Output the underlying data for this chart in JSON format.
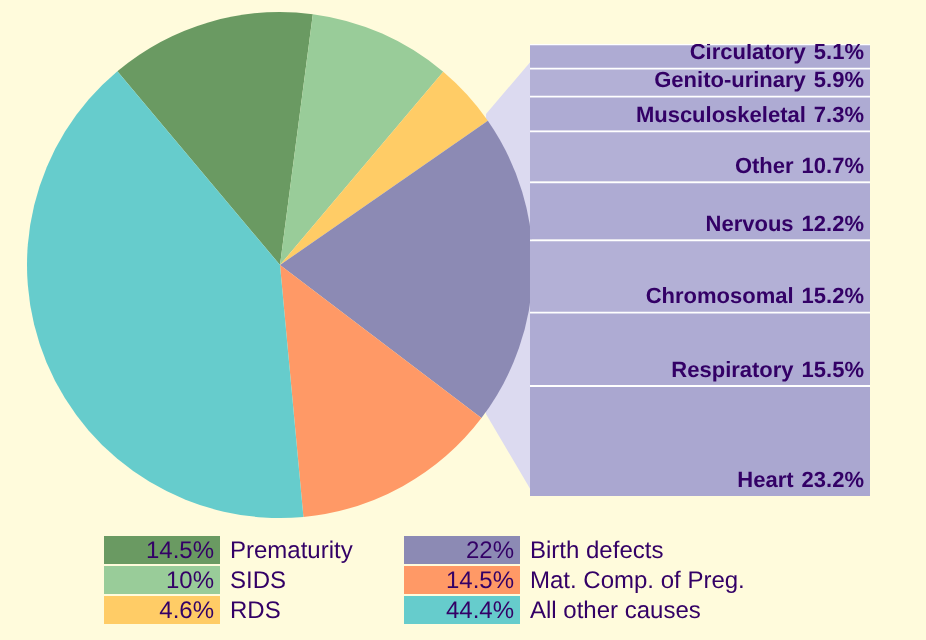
{
  "chart_data": [
    {
      "type": "pie",
      "categories": [
        "Prematurity",
        "SIDS",
        "RDS",
        "Birth defects",
        "Mat. Comp. of Preg.",
        "All other causes"
      ],
      "values": [
        14.5,
        10,
        4.6,
        22,
        14.5,
        44.4
      ],
      "value_labels": [
        "14.5%",
        "10%",
        "4.6%",
        "22%",
        "14.5%",
        "44.4%"
      ],
      "colors": [
        "#6a9a62",
        "#99cc99",
        "#ffcc66",
        "#8c8ab4",
        "#ff9966",
        "#66cccc"
      ],
      "legend": "bottom"
    },
    {
      "type": "bar",
      "stacked": true,
      "categories": [
        null
      ],
      "tick_labels": false,
      "series": [
        {
          "name": "Heart",
          "color": "#aaa7d0",
          "values": [
            23.2
          ],
          "value_labels": [
            "23.2%"
          ]
        },
        {
          "name": "Respiratory",
          "color": "#aeabd3",
          "values": [
            15.5
          ],
          "value_labels": [
            "15.5%"
          ]
        },
        {
          "name": "Chromosomal",
          "color": "#b3b0d6",
          "values": [
            15.2
          ],
          "value_labels": [
            "15.2%"
          ]
        },
        {
          "name": "Nervous",
          "color": "#aeabd3",
          "values": [
            12.2
          ],
          "value_labels": [
            "12.2%"
          ]
        },
        {
          "name": "Other",
          "color": "#b3b0d6",
          "values": [
            10.7
          ],
          "value_labels": [
            "10.7%"
          ]
        },
        {
          "name": "Musculoskeletal",
          "color": "#aeabd3",
          "values": [
            7.3
          ],
          "value_labels": [
            "7.3%"
          ]
        },
        {
          "name": "Genito-urinary",
          "color": "#b3b0d6",
          "values": [
            5.9
          ],
          "value_labels": [
            "5.9%"
          ]
        },
        {
          "name": "Circulatory",
          "color": "#aeabd3",
          "values": [
            5.1
          ],
          "value_labels": [
            "5.1%"
          ]
        }
      ]
    }
  ]
}
